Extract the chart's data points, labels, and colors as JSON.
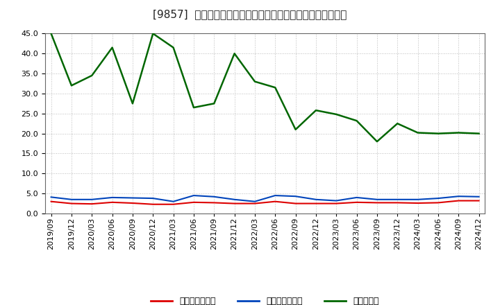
{
  "title": "[9857]  売上債権回転率、買入債務回転率、在庫回転率の推移",
  "ylim": [
    0.0,
    45.0
  ],
  "yticks": [
    0.0,
    5.0,
    10.0,
    15.0,
    20.0,
    25.0,
    30.0,
    35.0,
    40.0,
    45.0
  ],
  "dates": [
    "2019/09",
    "2019/12",
    "2020/03",
    "2020/06",
    "2020/09",
    "2020/12",
    "2021/03",
    "2021/06",
    "2021/09",
    "2021/12",
    "2022/03",
    "2022/06",
    "2022/09",
    "2022/12",
    "2023/03",
    "2023/06",
    "2023/09",
    "2023/12",
    "2024/03",
    "2024/06",
    "2024/09",
    "2024/12"
  ],
  "receivables_turnover": [
    3.0,
    2.5,
    2.4,
    2.8,
    2.6,
    2.3,
    2.3,
    2.8,
    2.7,
    2.5,
    2.5,
    3.0,
    2.5,
    2.5,
    2.5,
    2.8,
    2.7,
    2.7,
    2.6,
    2.7,
    3.2,
    3.2
  ],
  "payables_turnover": [
    4.1,
    3.5,
    3.5,
    4.0,
    3.9,
    3.8,
    3.0,
    4.5,
    4.2,
    3.5,
    3.0,
    4.5,
    4.3,
    3.5,
    3.2,
    4.0,
    3.5,
    3.5,
    3.5,
    3.8,
    4.3,
    4.2
  ],
  "inventory_turnover": [
    45.0,
    32.0,
    34.5,
    41.5,
    27.5,
    45.0,
    41.5,
    26.5,
    27.5,
    40.0,
    33.0,
    31.5,
    21.0,
    25.8,
    24.8,
    23.2,
    18.0,
    22.5,
    20.2,
    20.0,
    20.2,
    20.0
  ],
  "colors": {
    "receivables": "#dd0000",
    "payables": "#0044bb",
    "inventory": "#006600"
  },
  "legend_labels": [
    "売上債権回転率",
    "買入債務回転率",
    "在庫回転率"
  ],
  "background_color": "#ffffff",
  "grid_color": "#bbbbbb",
  "title_fontsize": 11,
  "tick_fontsize": 8,
  "legend_fontsize": 9
}
